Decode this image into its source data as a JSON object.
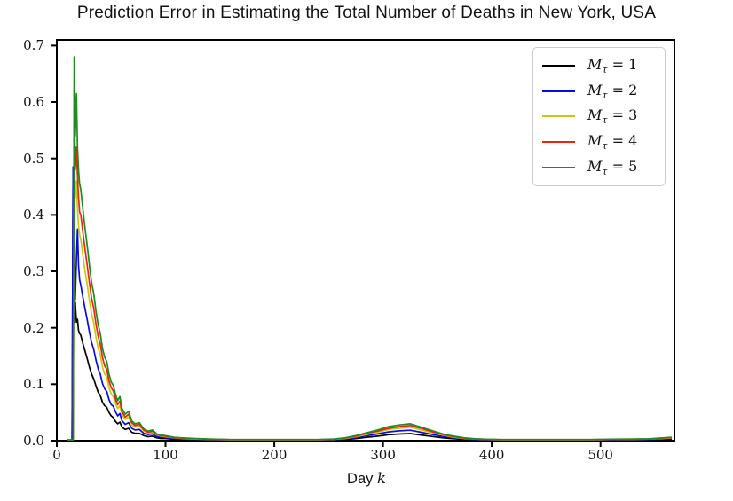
{
  "figure": {
    "title": "Prediction Error in Estimating the Total Number of Deaths in New York, USA"
  },
  "chart_data": {
    "type": "line",
    "title": "Prediction Error in Estimating the Total Number of Deaths in New York, USA",
    "xlabel": "Day k",
    "xlabel_text": "Day",
    "xlabel_math": "k",
    "ylabel": "",
    "xlim": [
      0,
      568
    ],
    "ylim": [
      0,
      0.71
    ],
    "grid": false,
    "legend_position": "upper right",
    "xtick_labels": [
      "0",
      "100",
      "200",
      "300",
      "400",
      "500"
    ],
    "xticks": [
      0,
      100,
      200,
      300,
      400,
      500
    ],
    "ytick_labels": [
      "0.0",
      "0.1",
      "0.2",
      "0.3",
      "0.4",
      "0.5",
      "0.6",
      "0.7"
    ],
    "yticks": [
      0.0,
      0.1,
      0.2,
      0.3,
      0.4,
      0.5,
      0.6,
      0.7
    ],
    "x": [
      10,
      14,
      15,
      16,
      17,
      18,
      19,
      20,
      21,
      22,
      24,
      26,
      28,
      30,
      32,
      34,
      36,
      38,
      40,
      42,
      44,
      46,
      48,
      50,
      52,
      54,
      56,
      58,
      60,
      63,
      66,
      69,
      72,
      76,
      80,
      84,
      88,
      92,
      96,
      100,
      108,
      116,
      126,
      140,
      160,
      180,
      200,
      220,
      240,
      255,
      265,
      275,
      285,
      295,
      305,
      315,
      325,
      335,
      345,
      355,
      365,
      375,
      385,
      395,
      410,
      430,
      450,
      470,
      490,
      510,
      530,
      545,
      557,
      565
    ],
    "series": [
      {
        "name": "M_tau = 1",
        "legend_var": "M",
        "legend_sub": "τ",
        "legend_rhs": " = 1",
        "color": "#000000",
        "values": [
          0,
          0,
          0.485,
          0.21,
          0.245,
          0.21,
          0.215,
          0.195,
          0.19,
          0.187,
          0.172,
          0.158,
          0.145,
          0.13,
          0.118,
          0.109,
          0.097,
          0.086,
          0.08,
          0.068,
          0.062,
          0.059,
          0.05,
          0.044,
          0.041,
          0.034,
          0.03,
          0.033,
          0.024,
          0.02,
          0.022,
          0.015,
          0.013,
          0.013,
          0.009,
          0.007,
          0.008,
          0.005,
          0.004,
          0.004,
          0.0025,
          0.002,
          0.0017,
          0.0013,
          0.001,
          0.001,
          0.001,
          0.001,
          0.001,
          0.0013,
          0.0021,
          0.0038,
          0.0059,
          0.008,
          0.0105,
          0.0118,
          0.0126,
          0.0101,
          0.0076,
          0.005,
          0.0034,
          0.0021,
          0.0015,
          0.0011,
          0.001,
          0.001,
          0.001,
          0.001,
          0.001,
          0.0011,
          0.0013,
          0.0015,
          0.0021,
          0.0025
        ]
      },
      {
        "name": "M_tau = 2",
        "legend_var": "M",
        "legend_sub": "τ",
        "legend_rhs": " = 2",
        "color": "#0a0ae6",
        "values": [
          0,
          0,
          0.485,
          0.26,
          0.25,
          0.32,
          0.375,
          0.31,
          0.285,
          0.276,
          0.254,
          0.233,
          0.214,
          0.192,
          0.174,
          0.161,
          0.143,
          0.127,
          0.118,
          0.101,
          0.092,
          0.087,
          0.073,
          0.064,
          0.061,
          0.051,
          0.044,
          0.048,
          0.035,
          0.029,
          0.032,
          0.022,
          0.019,
          0.02,
          0.013,
          0.011,
          0.012,
          0.0074,
          0.0062,
          0.0056,
          0.0037,
          0.0031,
          0.0025,
          0.0019,
          0.0012,
          0.0012,
          0.0012,
          0.0012,
          0.0012,
          0.0019,
          0.0031,
          0.0056,
          0.0087,
          0.012,
          0.0155,
          0.0174,
          0.0186,
          0.0149,
          0.0112,
          0.0074,
          0.005,
          0.0031,
          0.0022,
          0.0016,
          0.0012,
          0.0012,
          0.0012,
          0.0012,
          0.0012,
          0.0016,
          0.0019,
          0.0022,
          0.0031,
          0.0037
        ]
      },
      {
        "name": "M_tau = 3",
        "legend_var": "M",
        "legend_sub": "τ",
        "legend_rhs": " = 3",
        "color": "#c8c814",
        "values": [
          0,
          0,
          0.001,
          0.55,
          0.43,
          0.46,
          0.41,
          0.38,
          0.365,
          0.356,
          0.328,
          0.3,
          0.276,
          0.248,
          0.224,
          0.208,
          0.184,
          0.164,
          0.152,
          0.13,
          0.118,
          0.112,
          0.094,
          0.083,
          0.078,
          0.066,
          0.057,
          0.062,
          0.046,
          0.038,
          0.042,
          0.028,
          0.024,
          0.026,
          0.017,
          0.014,
          0.015,
          0.01,
          0.008,
          0.007,
          0.005,
          0.004,
          0.003,
          0.0024,
          0.0016,
          0.0016,
          0.0016,
          0.0016,
          0.0016,
          0.0024,
          0.004,
          0.007,
          0.011,
          0.015,
          0.02,
          0.022,
          0.024,
          0.019,
          0.014,
          0.01,
          0.006,
          0.004,
          0.0028,
          0.002,
          0.0016,
          0.0016,
          0.0016,
          0.0016,
          0.0016,
          0.002,
          0.0024,
          0.0028,
          0.004,
          0.0048
        ]
      },
      {
        "name": "M_tau = 4",
        "legend_var": "M",
        "legend_sub": "τ",
        "legend_rhs": " = 4",
        "color": "#ee2211",
        "values": [
          0,
          0,
          0.001,
          0.62,
          0.48,
          0.52,
          0.47,
          0.43,
          0.405,
          0.4,
          0.369,
          0.338,
          0.31,
          0.279,
          0.252,
          0.234,
          0.207,
          0.185,
          0.171,
          0.147,
          0.133,
          0.126,
          0.106,
          0.094,
          0.088,
          0.074,
          0.064,
          0.07,
          0.051,
          0.042,
          0.047,
          0.032,
          0.027,
          0.029,
          0.019,
          0.015,
          0.017,
          0.011,
          0.009,
          0.008,
          0.0055,
          0.0045,
          0.0035,
          0.0027,
          0.0018,
          0.0018,
          0.0018,
          0.0018,
          0.0018,
          0.0027,
          0.0045,
          0.008,
          0.013,
          0.017,
          0.022,
          0.025,
          0.027,
          0.022,
          0.016,
          0.011,
          0.007,
          0.0045,
          0.003,
          0.0022,
          0.0018,
          0.0018,
          0.0018,
          0.0018,
          0.0018,
          0.0022,
          0.0027,
          0.003,
          0.0045,
          0.0055
        ]
      },
      {
        "name": "M_tau = 5",
        "legend_var": "M",
        "legend_sub": "τ",
        "legend_rhs": " = 5",
        "color": "#1e8c1e",
        "values": [
          0,
          0,
          0.001,
          0.68,
          0.54,
          0.615,
          0.52,
          0.48,
          0.455,
          0.445,
          0.41,
          0.375,
          0.345,
          0.31,
          0.28,
          0.26,
          0.23,
          0.205,
          0.19,
          0.163,
          0.148,
          0.14,
          0.118,
          0.104,
          0.098,
          0.082,
          0.071,
          0.078,
          0.057,
          0.047,
          0.052,
          0.035,
          0.03,
          0.032,
          0.021,
          0.017,
          0.019,
          0.012,
          0.01,
          0.009,
          0.006,
          0.005,
          0.004,
          0.003,
          0.002,
          0.002,
          0.002,
          0.002,
          0.002,
          0.003,
          0.005,
          0.009,
          0.014,
          0.019,
          0.025,
          0.028,
          0.03,
          0.024,
          0.018,
          0.012,
          0.008,
          0.005,
          0.0035,
          0.0025,
          0.002,
          0.002,
          0.002,
          0.002,
          0.002,
          0.0025,
          0.003,
          0.0035,
          0.005,
          0.006
        ]
      }
    ]
  }
}
